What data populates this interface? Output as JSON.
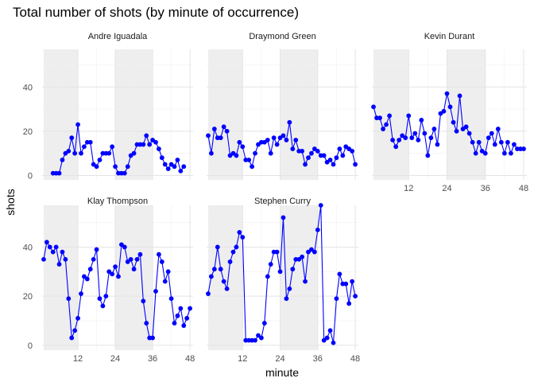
{
  "chart_data": {
    "type": "line",
    "title": "Total number of shots (by minute of occurrence)",
    "xlabel": "minute",
    "ylabel": "shots",
    "xlim": [
      0.5,
      49
    ],
    "ylim": [
      -2,
      57
    ],
    "x_ticks": [
      12,
      24,
      36,
      48
    ],
    "y_ticks": [
      0,
      20,
      40
    ],
    "shaded_quarters": [
      [
        1,
        12
      ],
      [
        24,
        36
      ]
    ],
    "grid": true,
    "color": "#0000ff",
    "series": [
      {
        "name": "Andre Iguadala",
        "x": [
          4,
          5,
          6,
          7,
          8,
          9,
          10,
          11,
          12,
          13,
          14,
          15,
          16,
          17,
          18,
          19,
          20,
          21,
          22,
          23,
          24,
          25,
          26,
          27,
          28,
          29,
          30,
          31,
          32,
          33,
          34,
          35,
          36,
          37,
          38,
          39,
          40,
          41,
          42,
          43,
          44,
          45,
          46,
          47,
          48
        ],
        "y": [
          1,
          1,
          1,
          7,
          10,
          11,
          17,
          10,
          23,
          10,
          13,
          15,
          15,
          5,
          4,
          7,
          10,
          10,
          10,
          13,
          4,
          1,
          1,
          1,
          4,
          9,
          10,
          14,
          14,
          14,
          18,
          14,
          16,
          15,
          12,
          8,
          5,
          3,
          5,
          4,
          7,
          2,
          4,
          null,
          null
        ]
      },
      {
        "name": "Draymond Green",
        "x": [
          1,
          2,
          3,
          4,
          5,
          6,
          7,
          8,
          9,
          10,
          11,
          12,
          13,
          14,
          15,
          16,
          17,
          18,
          19,
          20,
          21,
          22,
          23,
          24,
          25,
          26,
          27,
          28,
          29,
          30,
          31,
          32,
          33,
          34,
          35,
          36,
          37,
          38,
          39,
          40,
          41,
          42,
          43,
          44,
          45,
          46,
          47,
          48
        ],
        "y": [
          18,
          10,
          21,
          17,
          17,
          22,
          20,
          9,
          10,
          9,
          15,
          13,
          7,
          7,
          4,
          10,
          14,
          15,
          15,
          16,
          10,
          17,
          14,
          17,
          18,
          16,
          24,
          12,
          16,
          11,
          11,
          5,
          8,
          10,
          12,
          11,
          9,
          9,
          6,
          7,
          5,
          8,
          12,
          9,
          13,
          12,
          11,
          5
        ]
      },
      {
        "name": "Kevin Durant",
        "x": [
          1,
          2,
          3,
          4,
          5,
          6,
          7,
          8,
          9,
          10,
          11,
          12,
          13,
          14,
          15,
          16,
          17,
          18,
          19,
          20,
          21,
          22,
          23,
          24,
          25,
          26,
          27,
          28,
          29,
          30,
          31,
          32,
          33,
          34,
          35,
          36,
          37,
          38,
          39,
          40,
          41,
          42,
          43,
          44,
          45,
          46,
          47,
          48
        ],
        "y": [
          31,
          26,
          26,
          21,
          23,
          27,
          16,
          13,
          16,
          18,
          17,
          27,
          17,
          19,
          16,
          25,
          19,
          9,
          17,
          21,
          14,
          28,
          29,
          37,
          31,
          24,
          20,
          36,
          21,
          22,
          19,
          15,
          10,
          15,
          11,
          10,
          17,
          19,
          14,
          21,
          15,
          10,
          15,
          10,
          14,
          12,
          12,
          12
        ]
      },
      {
        "name": "Klay Thompson",
        "x": [
          1,
          2,
          3,
          4,
          5,
          6,
          7,
          8,
          9,
          10,
          11,
          12,
          13,
          14,
          15,
          16,
          17,
          18,
          19,
          20,
          21,
          22,
          23,
          24,
          25,
          26,
          27,
          28,
          29,
          30,
          31,
          32,
          33,
          34,
          35,
          36,
          37,
          38,
          39,
          40,
          41,
          42,
          43,
          44,
          45,
          46,
          47,
          48
        ],
        "y": [
          35,
          42,
          40,
          38,
          40,
          33,
          38,
          35,
          19,
          3,
          6,
          11,
          21,
          28,
          27,
          31,
          35,
          39,
          19,
          16,
          20,
          30,
          29,
          32,
          28,
          41,
          40,
          34,
          35,
          31,
          35,
          37,
          18,
          9,
          3,
          3,
          22,
          37,
          34,
          26,
          30,
          19,
          9,
          12,
          15,
          8,
          11,
          15
        ]
      },
      {
        "name": "Stephen Curry",
        "x": [
          1,
          2,
          3,
          4,
          5,
          6,
          7,
          8,
          9,
          10,
          11,
          12,
          13,
          14,
          15,
          16,
          17,
          18,
          19,
          20,
          21,
          22,
          23,
          24,
          25,
          26,
          27,
          28,
          29,
          30,
          31,
          32,
          33,
          34,
          35,
          36,
          37,
          38,
          39,
          40,
          41,
          42,
          43,
          44,
          45,
          46,
          47,
          48
        ],
        "y": [
          21,
          28,
          31,
          40,
          31,
          26,
          23,
          34,
          38,
          40,
          46,
          44,
          2,
          2,
          2,
          2,
          4,
          3,
          9,
          28,
          33,
          38,
          38,
          30,
          52,
          19,
          23,
          31,
          35,
          35,
          36,
          26,
          38,
          39,
          38,
          47,
          57,
          2,
          3,
          6,
          1,
          19,
          29,
          25,
          25,
          17,
          26,
          20
        ]
      }
    ]
  }
}
